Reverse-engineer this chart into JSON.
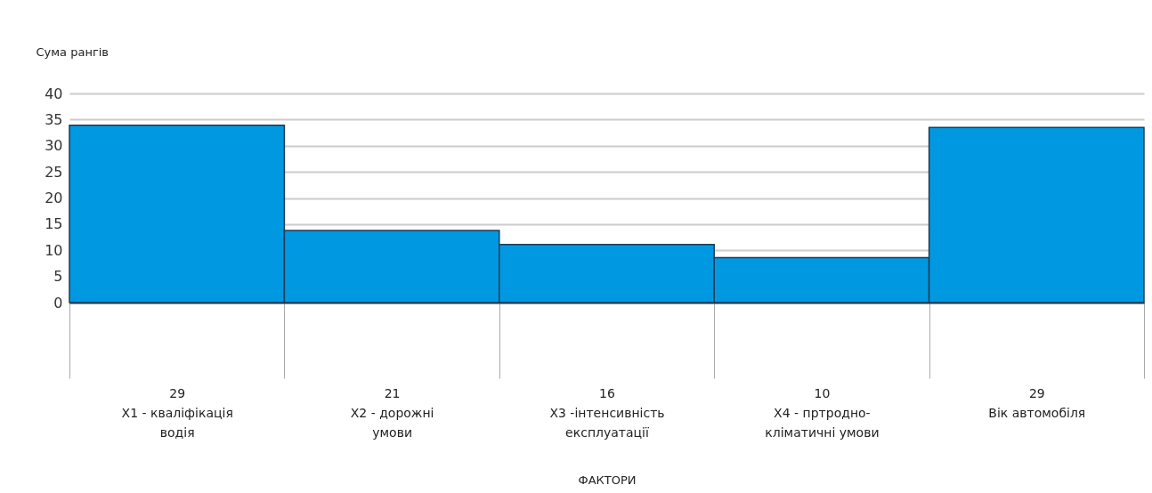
{
  "chart_data": {
    "type": "bar",
    "categories": [
      "29\nX1 - кваліфікація\nводія",
      "21\nX2 - дорожні\nумови",
      "16\nX3 -інтенсивність\nексплуатації",
      "10\nX4 - пртродно-\nкліматичні умови",
      "29\nВік автомобіля"
    ],
    "values": [
      33.9,
      13.8,
      11.1,
      8.6,
      33.5
    ],
    "color": "#0099e1",
    "ylabel": "Сума рангів",
    "xlabel": "ФАКТОРИ",
    "ylim": [
      0,
      40
    ],
    "yticks": [
      0,
      5,
      10,
      15,
      20,
      25,
      30,
      35,
      40
    ],
    "grid": "y"
  }
}
